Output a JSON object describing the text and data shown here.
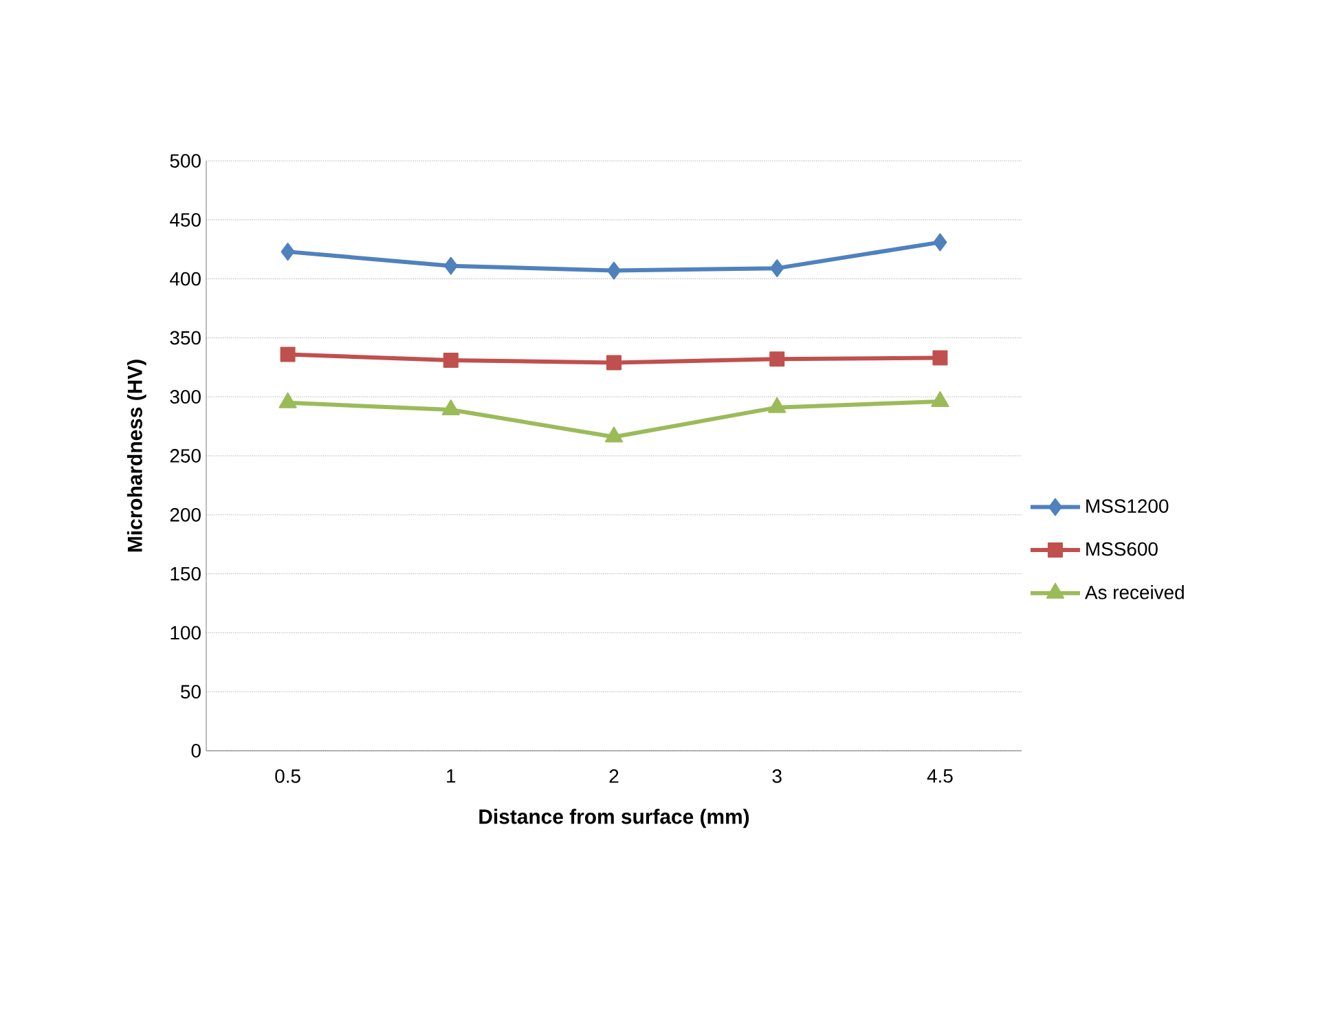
{
  "chart_data": {
    "type": "line",
    "xlabel": "Distance from surface (mm)",
    "ylabel": "Microhardness (HV)",
    "categories": [
      "0.5",
      "1",
      "2",
      "3",
      "4.5"
    ],
    "series": [
      {
        "name": "MSS1200",
        "color": "#4f81bd",
        "marker": "diamond",
        "values": [
          423,
          411,
          407,
          409,
          431
        ]
      },
      {
        "name": "MSS600",
        "color": "#c0504d",
        "marker": "square",
        "values": [
          336,
          331,
          329,
          332,
          333
        ]
      },
      {
        "name": "As received",
        "color": "#9bbb59",
        "marker": "triangle",
        "values": [
          295,
          289,
          266,
          291,
          296
        ]
      }
    ],
    "ylim": [
      0,
      500
    ],
    "yticks": [
      0,
      50,
      100,
      150,
      200,
      250,
      300,
      350,
      400,
      450,
      500
    ],
    "grid": "y",
    "legend": "right",
    "line_style": "solid"
  }
}
